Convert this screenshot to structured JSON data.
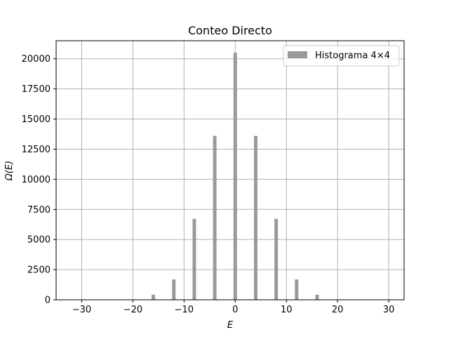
{
  "chart_data": {
    "type": "bar",
    "title": "Conteo Directo",
    "xlabel": "E",
    "ylabel": "Ω(E)",
    "xlim": [
      -35,
      33
    ],
    "ylim": [
      0,
      21500
    ],
    "xticks": [
      -30,
      -20,
      -10,
      0,
      10,
      20,
      30
    ],
    "xtick_labels": [
      "−30",
      "−20",
      "−10",
      "0",
      "10",
      "20",
      "30"
    ],
    "yticks": [
      0,
      2500,
      5000,
      7500,
      10000,
      12500,
      15000,
      17500,
      20000
    ],
    "ytick_labels": [
      "0",
      "2500",
      "5000",
      "7500",
      "10000",
      "12500",
      "15000",
      "17500",
      "20000"
    ],
    "grid": true,
    "legend_position": "top-right",
    "bar_width": 0.68,
    "series": [
      {
        "name": "Histograma 4×4",
        "color": "#999999",
        "x": [
          -16,
          -12,
          -8,
          -4,
          0,
          4,
          8,
          12,
          16
        ],
        "values": [
          420,
          1690,
          6720,
          13600,
          20500,
          13600,
          6720,
          1690,
          420
        ]
      }
    ]
  }
}
